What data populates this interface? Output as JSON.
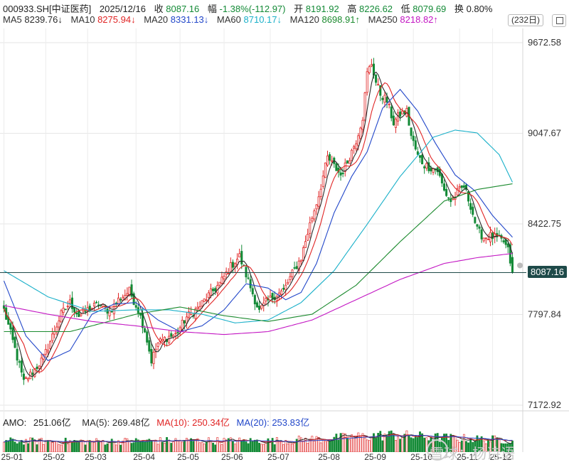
{
  "header": {
    "code": "000933.SH[中证医药]",
    "date": "2025/12/16",
    "close_label": "收",
    "close": "8087.16",
    "change_label": "幅",
    "change": "-1.38%(-112.97)",
    "open_label": "开",
    "open": "8191.92",
    "high_label": "高",
    "high": "8226.62",
    "low_label": "低",
    "low": "8079.69",
    "turnover_label": "换",
    "turnover": "0.80%"
  },
  "ma_legend": [
    {
      "label": "MA5",
      "value": "8239.76↓",
      "color": "#2b2b2b"
    },
    {
      "label": "MA10",
      "value": "8275.94↓",
      "color": "#e02424"
    },
    {
      "label": "MA20",
      "value": "8331.13↓",
      "color": "#2247c9"
    },
    {
      "label": "MA60",
      "value": "8710.17↓",
      "color": "#1ab0c9"
    },
    {
      "label": "MA120",
      "value": "8698.91↑",
      "color": "#1b8a2e"
    },
    {
      "label": "MA250",
      "value": "8218.82↑",
      "color": "#c316c3"
    }
  ],
  "period_badge": "(232日)",
  "current_price_tag": "8087.16",
  "watermark": "雪球：杨诗语",
  "amo": {
    "label": "AMO:",
    "value": "251.06亿",
    "ma5": "MA(5): 269.48亿",
    "ma10": "MA(10): 250.34亿",
    "ma20": "MA(20): 253.83亿"
  },
  "chart_data": {
    "type": "candlestick",
    "y_ticks": [
      "9672.58",
      "9047.67",
      "8422.75",
      "7797.84",
      "7172.92"
    ],
    "ylim": [
      7172.92,
      9672.58
    ],
    "x_ticks": [
      "25-01",
      "25-02",
      "25-03",
      "25-04",
      "25-05",
      "25-06",
      "25-07",
      "25-08",
      "25-09",
      "25-10",
      "25-11",
      "25-12"
    ],
    "colors": {
      "up": "#e02424",
      "down": "#138a36",
      "ma5": "#2b2b2b",
      "ma10": "#e02424",
      "ma20": "#2247c9",
      "ma60": "#1ab0c9",
      "ma120": "#1b8a2e",
      "ma250": "#c316c3",
      "price_line": "#1e4a49"
    },
    "close_keypoints": [
      [
        0,
        7830
      ],
      [
        5,
        7560
      ],
      [
        9,
        7330
      ],
      [
        14,
        7420
      ],
      [
        18,
        7500
      ],
      [
        22,
        7650
      ],
      [
        26,
        7800
      ],
      [
        30,
        7880
      ],
      [
        34,
        7790
      ],
      [
        38,
        7830
      ],
      [
        43,
        7870
      ],
      [
        48,
        7820
      ],
      [
        52,
        7900
      ],
      [
        57,
        7960
      ],
      [
        61,
        7830
      ],
      [
        64,
        7690
      ],
      [
        67,
        7480
      ],
      [
        70,
        7600
      ],
      [
        74,
        7640
      ],
      [
        78,
        7660
      ],
      [
        83,
        7780
      ],
      [
        88,
        7840
      ],
      [
        93,
        7930
      ],
      [
        98,
        8010
      ],
      [
        103,
        8130
      ],
      [
        107,
        8200
      ],
      [
        111,
        8030
      ],
      [
        114,
        7900
      ],
      [
        116,
        7820
      ],
      [
        119,
        7880
      ],
      [
        123,
        7930
      ],
      [
        127,
        7960
      ],
      [
        131,
        8080
      ],
      [
        135,
        8190
      ],
      [
        139,
        8420
      ],
      [
        143,
        8620
      ],
      [
        147,
        8880
      ],
      [
        150,
        8820
      ],
      [
        153,
        8760
      ],
      [
        156,
        8850
      ],
      [
        160,
        9000
      ],
      [
        163,
        9160
      ],
      [
        165,
        9460
      ],
      [
        167,
        9530
      ],
      [
        169,
        9400
      ],
      [
        171,
        9320
      ],
      [
        174,
        9270
      ],
      [
        177,
        9120
      ],
      [
        180,
        9180
      ],
      [
        183,
        9200
      ],
      [
        185,
        9030
      ],
      [
        188,
        8890
      ],
      [
        191,
        8830
      ],
      [
        194,
        8810
      ],
      [
        197,
        8790
      ],
      [
        200,
        8650
      ],
      [
        203,
        8580
      ],
      [
        206,
        8640
      ],
      [
        209,
        8680
      ],
      [
        212,
        8550
      ],
      [
        215,
        8380
      ],
      [
        218,
        8330
      ],
      [
        221,
        8340
      ],
      [
        224,
        8320
      ],
      [
        227,
        8300
      ],
      [
        229,
        8240
      ],
      [
        231,
        8087
      ]
    ],
    "ma20_keypoints": [
      [
        0,
        8030
      ],
      [
        10,
        7650
      ],
      [
        20,
        7480
      ],
      [
        30,
        7550
      ],
      [
        40,
        7800
      ],
      [
        50,
        7870
      ],
      [
        60,
        7880
      ],
      [
        70,
        7760
      ],
      [
        80,
        7680
      ],
      [
        90,
        7720
      ],
      [
        100,
        7830
      ],
      [
        110,
        8010
      ],
      [
        120,
        7980
      ],
      [
        128,
        7900
      ],
      [
        135,
        7950
      ],
      [
        142,
        8150
      ],
      [
        150,
        8500
      ],
      [
        158,
        8750
      ],
      [
        165,
        8920
      ],
      [
        172,
        9220
      ],
      [
        180,
        9350
      ],
      [
        188,
        9200
      ],
      [
        196,
        8980
      ],
      [
        205,
        8760
      ],
      [
        214,
        8650
      ],
      [
        222,
        8480
      ],
      [
        231,
        8331
      ]
    ],
    "ma60_keypoints": [
      [
        0,
        8100
      ],
      [
        20,
        7920
      ],
      [
        40,
        7820
      ],
      [
        60,
        7830
      ],
      [
        75,
        7830
      ],
      [
        90,
        7800
      ],
      [
        105,
        7740
      ],
      [
        120,
        7760
      ],
      [
        135,
        7880
      ],
      [
        150,
        8100
      ],
      [
        165,
        8420
      ],
      [
        180,
        8750
      ],
      [
        195,
        9020
      ],
      [
        205,
        9070
      ],
      [
        215,
        9050
      ],
      [
        225,
        8900
      ],
      [
        231,
        8710
      ]
    ],
    "ma120_keypoints": [
      [
        0,
        7680
      ],
      [
        30,
        7680
      ],
      [
        60,
        7800
      ],
      [
        80,
        7850
      ],
      [
        100,
        7790
      ],
      [
        120,
        7750
      ],
      [
        140,
        7800
      ],
      [
        160,
        8000
      ],
      [
        180,
        8300
      ],
      [
        200,
        8580
      ],
      [
        215,
        8660
      ],
      [
        231,
        8699
      ]
    ],
    "ma250_keypoints": [
      [
        0,
        7860
      ],
      [
        20,
        7800
      ],
      [
        40,
        7750
      ],
      [
        60,
        7720
      ],
      [
        80,
        7680
      ],
      [
        100,
        7660
      ],
      [
        120,
        7680
      ],
      [
        140,
        7760
      ],
      [
        160,
        7900
      ],
      [
        180,
        8040
      ],
      [
        200,
        8150
      ],
      [
        215,
        8190
      ],
      [
        231,
        8219
      ]
    ],
    "amo_ma_keypoints": [
      [
        0,
        230
      ],
      [
        40,
        220
      ],
      [
        80,
        240
      ],
      [
        120,
        230
      ],
      [
        150,
        290
      ],
      [
        175,
        360
      ],
      [
        195,
        310
      ],
      [
        215,
        270
      ],
      [
        231,
        252
      ]
    ]
  }
}
